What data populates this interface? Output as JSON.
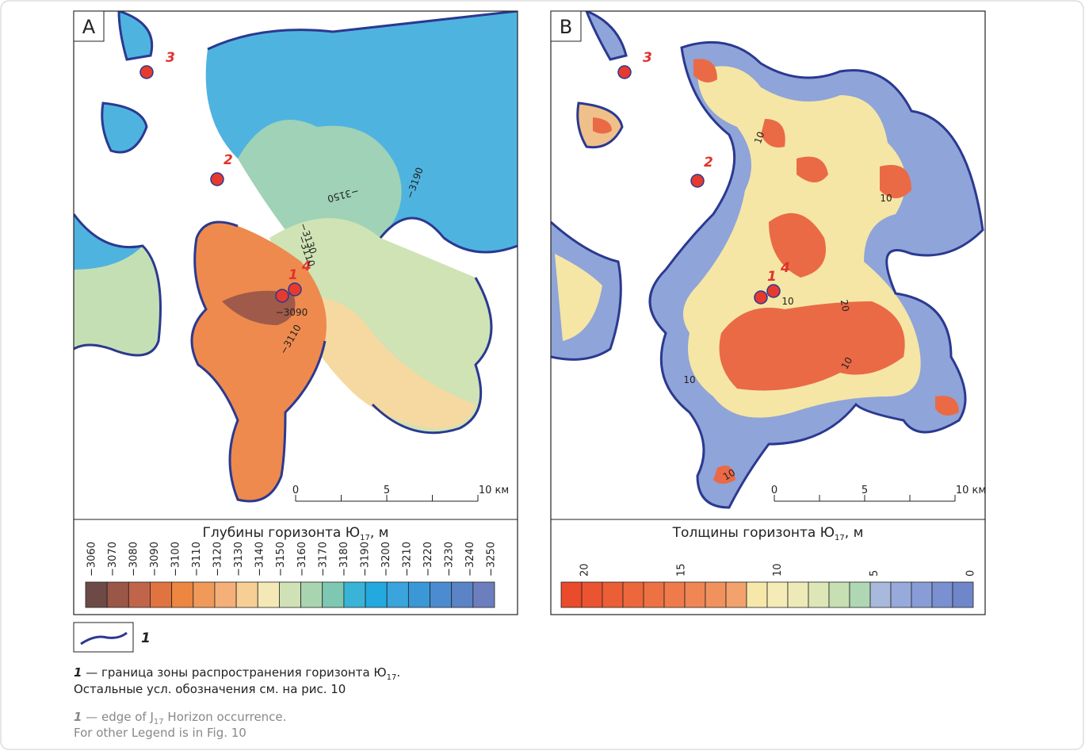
{
  "panels": [
    {
      "label": "A",
      "wells": [
        {
          "label": "3"
        },
        {
          "label": "2"
        },
        {
          "label": "1"
        },
        {
          "label": "4"
        }
      ],
      "contour_labels": [
        "−3150",
        "−3190",
        "−3130",
        "−3110",
        "−3090",
        "−3110"
      ],
      "scale_bar": [
        "0",
        "5",
        "10 км"
      ],
      "legend": {
        "title": "Глубины горизонта Ю",
        "title_sub": "17",
        "title_end": ", м",
        "ticks": [
          "−3060",
          "−3070",
          "−3080",
          "−3090",
          "−3100",
          "−3110",
          "−3120",
          "−3130",
          "−3140",
          "−3150",
          "−3160",
          "−3170",
          "−3180",
          "−3190",
          "−3200",
          "−3210",
          "−3220",
          "−3230",
          "−3240",
          "−3250"
        ]
      }
    },
    {
      "label": "B",
      "wells": [
        {
          "label": "3"
        },
        {
          "label": "2"
        },
        {
          "label": "1"
        },
        {
          "label": "4"
        }
      ],
      "contour_labels": [
        "10",
        "10",
        "10",
        "20",
        "10",
        "10",
        "10"
      ],
      "scale_bar": [
        "0",
        "5",
        "10 км"
      ],
      "legend": {
        "title": "Толщины горизонта Ю",
        "title_sub": "17",
        "title_end": ", м",
        "ticks": [
          "20",
          "15",
          "10",
          "5",
          "0"
        ]
      }
    }
  ],
  "legend_item": "1",
  "caption": {
    "ru": {
      "num": "1",
      "text": " — граница зоны распространения горизонта Ю",
      "sub": "17",
      "end": ".",
      "line2": "Остальные усл. обозначения см. на рис. 10"
    },
    "en": {
      "num": "1",
      "text": " — edge of J",
      "sub": "17",
      "end": " Horizon occurrence.",
      "line2": "For other Legend is in Fig. 10"
    }
  }
}
